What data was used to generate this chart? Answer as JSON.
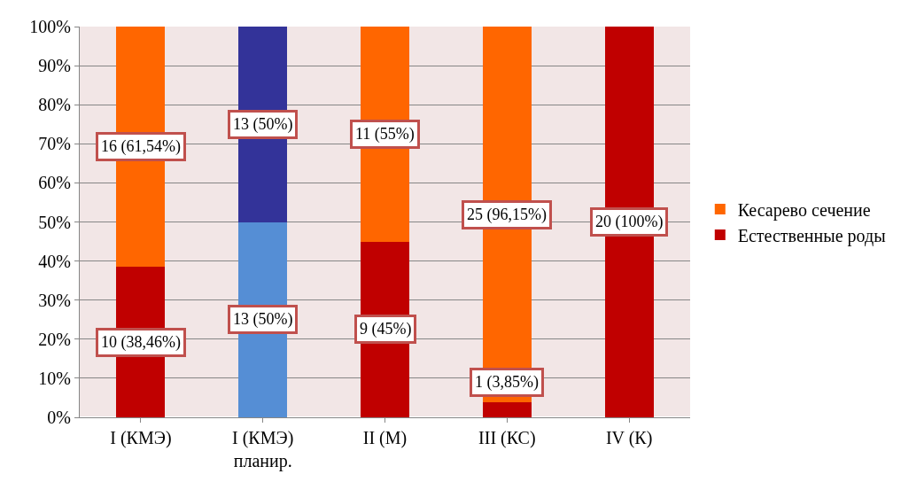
{
  "chart_data": {
    "type": "bar",
    "stacked": true,
    "categories": [
      "I (КМЭ)",
      "I (КМЭ)\nпланир.",
      "II (М)",
      "III (КС)",
      "IV (К)"
    ],
    "series": [
      {
        "name": "Естественные роды",
        "color": "#c00000",
        "colors": [
          "#c00000",
          "#558ed5",
          "#c00000",
          "#c00000",
          "#c00000"
        ],
        "values": [
          38.46,
          50,
          45,
          3.85,
          100
        ],
        "value_labels": [
          "10 (38,46%)",
          "13 (50%)",
          "9 (45%)",
          "1 (3,85%)",
          "20 (100%)"
        ]
      },
      {
        "name": "Кесарево сечение",
        "color": "#ff6600",
        "colors": [
          "#ff6600",
          "#333399",
          "#ff6600",
          "#ff6600",
          "#ff6600"
        ],
        "values": [
          61.54,
          50,
          55,
          96.15,
          0
        ],
        "value_labels": [
          "16 (61,54%)",
          "13 (50%)",
          "11 (55%)",
          "25 (96,15%)",
          null
        ]
      }
    ],
    "ylim": [
      0,
      100
    ],
    "yticks": [
      {
        "value": 0,
        "label": "0%"
      },
      {
        "value": 10,
        "label": "10%"
      },
      {
        "value": 20,
        "label": "20%"
      },
      {
        "value": 30,
        "label": "30%"
      },
      {
        "value": 40,
        "label": "40%"
      },
      {
        "value": 50,
        "label": "50%"
      },
      {
        "value": 60,
        "label": "60%"
      },
      {
        "value": 70,
        "label": "70%"
      },
      {
        "value": 80,
        "label": "80%"
      },
      {
        "value": 90,
        "label": "90%"
      },
      {
        "value": 100,
        "label": "100%"
      }
    ],
    "grid": "y",
    "legend": "right"
  }
}
